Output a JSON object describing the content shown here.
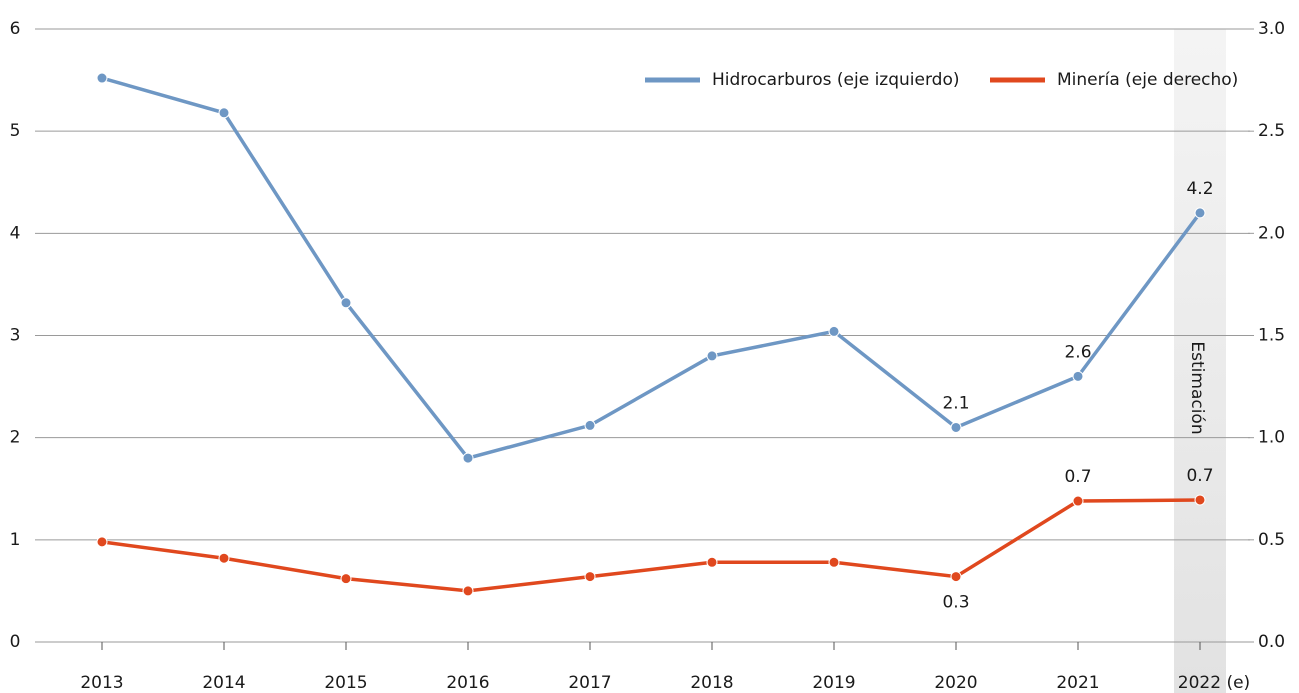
{
  "chart_data": {
    "type": "line",
    "categories": [
      "2013",
      "2014",
      "2015",
      "2016",
      "2017",
      "2018",
      "2019",
      "2020",
      "2021",
      "2022 (e)"
    ],
    "series": [
      {
        "name": "Hidrocarburos (eje izquierdo)",
        "color": "#6e97c4",
        "values": [
          5.52,
          5.18,
          3.32,
          1.8,
          2.12,
          2.8,
          3.04,
          2.1,
          2.6,
          4.2
        ],
        "value_labels": [
          null,
          null,
          null,
          null,
          null,
          null,
          null,
          "2.1",
          "2.6",
          "4.2"
        ]
      },
      {
        "name": "Minería (eje derecho)",
        "color": "#e0481e",
        "axis": "y2",
        "values": [
          0.49,
          0.41,
          0.31,
          0.25,
          0.32,
          0.39,
          0.39,
          0.32,
          0.69,
          0.695
        ],
        "value_labels": [
          null,
          null,
          null,
          null,
          null,
          null,
          null,
          "0.3",
          "0.7",
          "0.7"
        ]
      }
    ],
    "ylim": [
      0,
      6
    ],
    "yticks": [
      0,
      1,
      2,
      3,
      4,
      5,
      6
    ],
    "y2lim": [
      0,
      3
    ],
    "y2ticks": [
      {
        "value": 0,
        "label": "0.0"
      },
      {
        "value": 0.5,
        "label": "0.5"
      },
      {
        "value": 1,
        "label": "1.0"
      },
      {
        "value": 1.5,
        "label": "1.5"
      },
      {
        "value": 2,
        "label": "2.0"
      },
      {
        "value": 2.5,
        "label": "2.5"
      },
      {
        "value": 3,
        "label": "3.0"
      }
    ],
    "grid": true,
    "legend": "top-right",
    "annotations": [
      {
        "text": "Estimación",
        "category": 9
      }
    ]
  }
}
